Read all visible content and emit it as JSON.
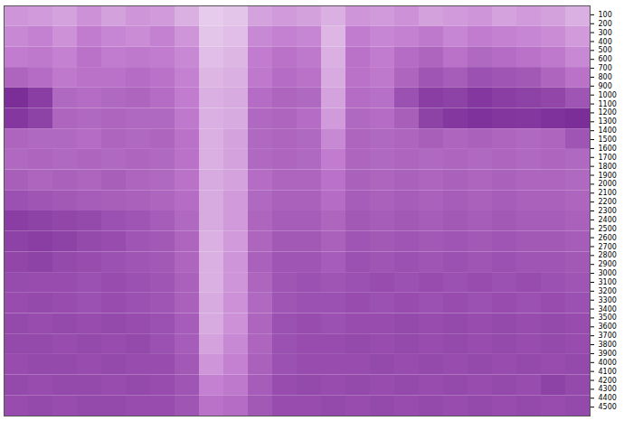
{
  "chart_data": {
    "type": "heatmap",
    "xlim": [
      0,
      24
    ],
    "ylim": [
      4600,
      0
    ],
    "yticks": [
      100,
      200,
      300,
      400,
      500,
      600,
      700,
      800,
      900,
      1000,
      1100,
      1200,
      1300,
      1400,
      1500,
      1600,
      1700,
      1800,
      1900,
      2000,
      2100,
      2200,
      2300,
      2400,
      2500,
      2600,
      2700,
      2800,
      2900,
      3000,
      3100,
      3200,
      3300,
      3400,
      3500,
      3600,
      3700,
      3800,
      3900,
      4000,
      4100,
      4200,
      4300,
      4400,
      4500
    ],
    "tick_labels": "y",
    "xbins": [
      0,
      1,
      2,
      3,
      4,
      5,
      6,
      7,
      8,
      9,
      10,
      11,
      12,
      13,
      14,
      15,
      16,
      17,
      18,
      19,
      20,
      21,
      22,
      23,
      24
    ],
    "ybins": [
      0,
      230,
      460,
      690,
      920,
      1150,
      1380,
      1610,
      1840,
      2070,
      2300,
      2530,
      2760,
      2990,
      3220,
      3450,
      3680,
      3910,
      4140,
      4370,
      4600
    ],
    "zlim": [
      0,
      1
    ],
    "colors": [
      "#ffffff",
      "#c27ccf",
      "#6a1b8a"
    ],
    "cells": [
      [
        0.4,
        0.38,
        0.35,
        0.42,
        0.36,
        0.4,
        0.38,
        0.3,
        0.2,
        0.22,
        0.35,
        0.38,
        0.36,
        0.3,
        0.4,
        0.38,
        0.42,
        0.36,
        0.38,
        0.4,
        0.35,
        0.38,
        0.36,
        0.3
      ],
      [
        0.45,
        0.48,
        0.42,
        0.5,
        0.46,
        0.44,
        0.48,
        0.4,
        0.22,
        0.25,
        0.45,
        0.48,
        0.46,
        0.28,
        0.5,
        0.46,
        0.48,
        0.52,
        0.46,
        0.5,
        0.48,
        0.46,
        0.44,
        0.38
      ],
      [
        0.5,
        0.52,
        0.48,
        0.55,
        0.5,
        0.52,
        0.5,
        0.45,
        0.25,
        0.28,
        0.5,
        0.55,
        0.52,
        0.3,
        0.55,
        0.5,
        0.58,
        0.62,
        0.55,
        0.6,
        0.58,
        0.55,
        0.52,
        0.45
      ],
      [
        0.62,
        0.58,
        0.52,
        0.55,
        0.55,
        0.58,
        0.55,
        0.48,
        0.28,
        0.3,
        0.52,
        0.58,
        0.55,
        0.32,
        0.55,
        0.52,
        0.62,
        0.7,
        0.66,
        0.72,
        0.7,
        0.68,
        0.62,
        0.55
      ],
      [
        0.9,
        0.82,
        0.6,
        0.58,
        0.6,
        0.62,
        0.58,
        0.5,
        0.3,
        0.32,
        0.58,
        0.62,
        0.6,
        0.35,
        0.58,
        0.56,
        0.72,
        0.82,
        0.8,
        0.85,
        0.82,
        0.8,
        0.78,
        0.7
      ],
      [
        0.85,
        0.8,
        0.62,
        0.6,
        0.62,
        0.6,
        0.6,
        0.52,
        0.3,
        0.32,
        0.6,
        0.62,
        0.58,
        0.38,
        0.6,
        0.58,
        0.65,
        0.8,
        0.85,
        0.88,
        0.86,
        0.85,
        0.88,
        0.9
      ],
      [
        0.62,
        0.6,
        0.6,
        0.58,
        0.62,
        0.6,
        0.62,
        0.55,
        0.3,
        0.35,
        0.6,
        0.62,
        0.6,
        0.45,
        0.62,
        0.6,
        0.62,
        0.65,
        0.62,
        0.64,
        0.62,
        0.6,
        0.62,
        0.7
      ],
      [
        0.6,
        0.62,
        0.6,
        0.62,
        0.6,
        0.62,
        0.6,
        0.55,
        0.3,
        0.35,
        0.6,
        0.62,
        0.6,
        0.5,
        0.62,
        0.6,
        0.62,
        0.6,
        0.62,
        0.6,
        0.62,
        0.6,
        0.62,
        0.6
      ],
      [
        0.65,
        0.62,
        0.64,
        0.62,
        0.65,
        0.62,
        0.6,
        0.55,
        0.32,
        0.35,
        0.58,
        0.62,
        0.62,
        0.55,
        0.64,
        0.62,
        0.64,
        0.62,
        0.64,
        0.62,
        0.64,
        0.62,
        0.62,
        0.6
      ],
      [
        0.72,
        0.7,
        0.68,
        0.66,
        0.65,
        0.64,
        0.62,
        0.58,
        0.32,
        0.38,
        0.6,
        0.64,
        0.64,
        0.58,
        0.66,
        0.64,
        0.66,
        0.64,
        0.66,
        0.64,
        0.66,
        0.64,
        0.64,
        0.62
      ],
      [
        0.82,
        0.8,
        0.78,
        0.76,
        0.72,
        0.7,
        0.66,
        0.6,
        0.32,
        0.38,
        0.62,
        0.66,
        0.66,
        0.62,
        0.68,
        0.66,
        0.68,
        0.66,
        0.68,
        0.66,
        0.68,
        0.66,
        0.66,
        0.64
      ],
      [
        0.8,
        0.82,
        0.8,
        0.76,
        0.74,
        0.7,
        0.68,
        0.62,
        0.3,
        0.38,
        0.62,
        0.68,
        0.68,
        0.64,
        0.7,
        0.68,
        0.7,
        0.68,
        0.7,
        0.68,
        0.7,
        0.68,
        0.68,
        0.66
      ],
      [
        0.78,
        0.8,
        0.76,
        0.74,
        0.72,
        0.7,
        0.68,
        0.62,
        0.3,
        0.4,
        0.64,
        0.7,
        0.7,
        0.66,
        0.72,
        0.7,
        0.72,
        0.7,
        0.72,
        0.7,
        0.72,
        0.7,
        0.7,
        0.68
      ],
      [
        0.75,
        0.74,
        0.74,
        0.72,
        0.74,
        0.72,
        0.7,
        0.64,
        0.3,
        0.4,
        0.62,
        0.7,
        0.72,
        0.7,
        0.72,
        0.74,
        0.72,
        0.74,
        0.72,
        0.74,
        0.72,
        0.74,
        0.72,
        0.7
      ],
      [
        0.74,
        0.76,
        0.74,
        0.72,
        0.74,
        0.72,
        0.7,
        0.64,
        0.32,
        0.42,
        0.6,
        0.7,
        0.72,
        0.72,
        0.74,
        0.72,
        0.74,
        0.72,
        0.74,
        0.72,
        0.74,
        0.72,
        0.74,
        0.72
      ],
      [
        0.76,
        0.74,
        0.76,
        0.74,
        0.76,
        0.74,
        0.72,
        0.66,
        0.32,
        0.42,
        0.62,
        0.72,
        0.74,
        0.72,
        0.74,
        0.74,
        0.76,
        0.74,
        0.76,
        0.74,
        0.76,
        0.74,
        0.76,
        0.74
      ],
      [
        0.76,
        0.76,
        0.74,
        0.76,
        0.74,
        0.76,
        0.72,
        0.66,
        0.35,
        0.45,
        0.62,
        0.72,
        0.74,
        0.74,
        0.76,
        0.74,
        0.76,
        0.74,
        0.76,
        0.74,
        0.76,
        0.74,
        0.76,
        0.74
      ],
      [
        0.74,
        0.76,
        0.76,
        0.74,
        0.76,
        0.74,
        0.74,
        0.68,
        0.4,
        0.48,
        0.64,
        0.72,
        0.74,
        0.74,
        0.74,
        0.76,
        0.74,
        0.76,
        0.74,
        0.76,
        0.74,
        0.76,
        0.74,
        0.76
      ],
      [
        0.76,
        0.74,
        0.76,
        0.76,
        0.74,
        0.76,
        0.74,
        0.7,
        0.48,
        0.52,
        0.66,
        0.74,
        0.76,
        0.74,
        0.76,
        0.74,
        0.76,
        0.74,
        0.76,
        0.74,
        0.76,
        0.74,
        0.8,
        0.76
      ],
      [
        0.74,
        0.76,
        0.74,
        0.76,
        0.76,
        0.74,
        0.74,
        0.7,
        0.55,
        0.58,
        0.68,
        0.74,
        0.74,
        0.76,
        0.74,
        0.76,
        0.74,
        0.76,
        0.74,
        0.76,
        0.74,
        0.76,
        0.74,
        0.76
      ]
    ]
  }
}
